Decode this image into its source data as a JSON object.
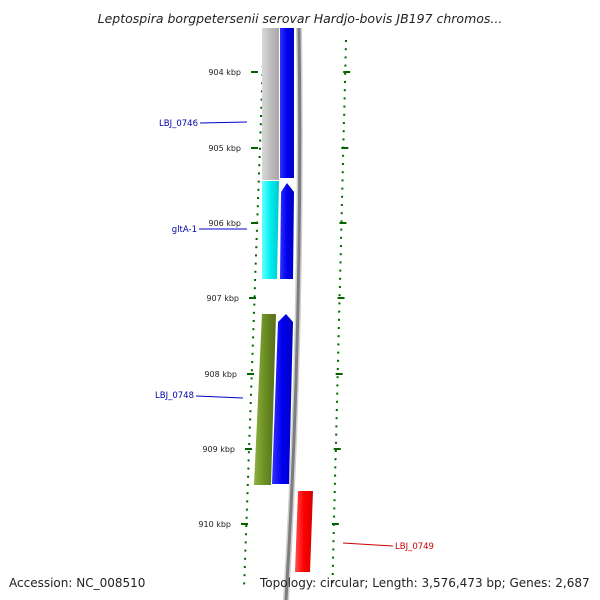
{
  "title": "Leptospira borgpetersenii serovar Hardjo-bovis JB197 chromos...",
  "accession": "Accession: NC_008510",
  "topology": "Topology: circular; Length: 3,576,473 bp; Genes: 2,687",
  "ticks": [
    "904 kbp",
    "905 kbp",
    "906 kbp",
    "907 kbp",
    "908 kbp",
    "909 kbp",
    "910 kbp"
  ],
  "genes": [
    {
      "label": "LBJ_0746",
      "color": "#0000aa"
    },
    {
      "label": "gltA-1",
      "color": "#0000aa"
    },
    {
      "label": "LBJ_0748",
      "color": "#0000aa"
    },
    {
      "label": "LBJ_0749",
      "color": "#cc0000"
    }
  ],
  "colors": {
    "backbone": "#8c8c8c",
    "cds_strand": "#0000ee",
    "gene_gray": "#bdbdbd",
    "gene_cyan": "#00e5ee",
    "gene_olive": "#6b8e23",
    "gene_red": "#ff0000",
    "tick_green": "#006400"
  }
}
